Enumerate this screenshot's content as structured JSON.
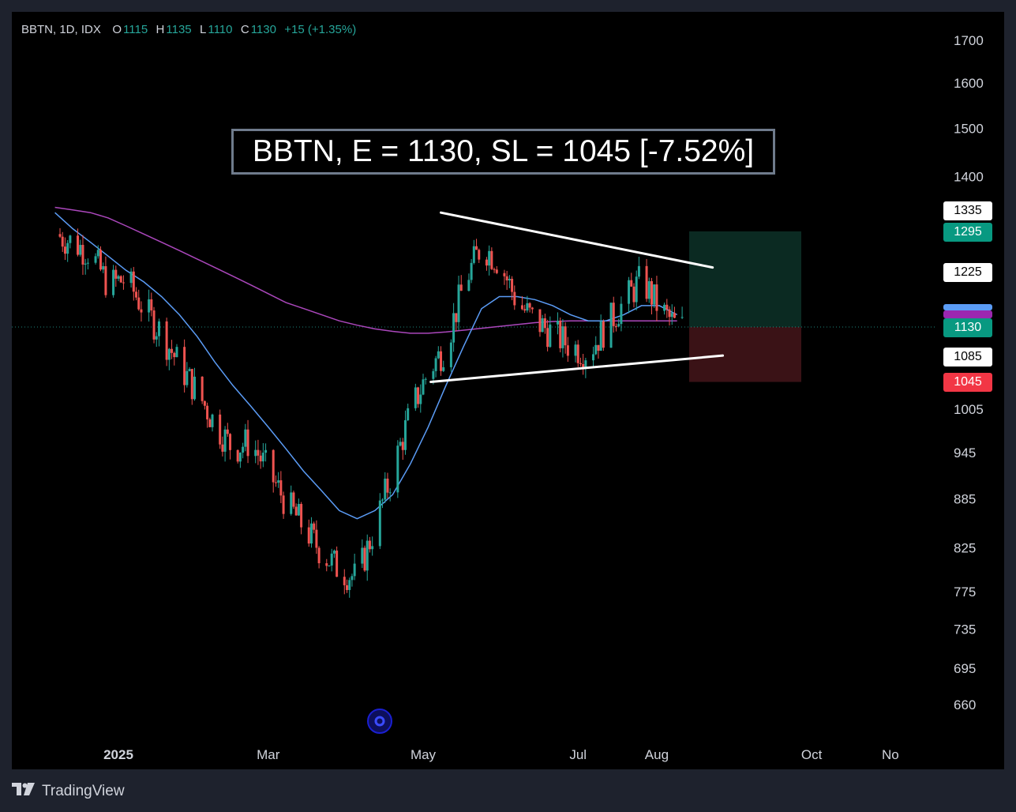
{
  "legend": {
    "symbol": "BBTN, 1D, IDX",
    "open_label": "O",
    "open": "1115",
    "high_label": "H",
    "high": "1135",
    "low_label": "L",
    "low": "1110",
    "close_label": "C",
    "close": "1130",
    "change": "+15 (+1.35%)"
  },
  "annotation": "BBTN, E = 1130, SL = 1045 [-7.52%]",
  "brand": "TradingView",
  "price_tags": {
    "t1335": "1335",
    "t1295": "1295",
    "t1225": "1225",
    "t1130": "1130",
    "t1085": "1085",
    "t1045": "1045"
  },
  "colors": {
    "up": "#26a69a",
    "down": "#ef5350",
    "ma_fast": "#5b9cf6",
    "ma_slow": "#ab47bc",
    "profit_zone": "#0b2a22",
    "loss_zone": "#3a1216"
  },
  "chart_data": {
    "type": "candlestick",
    "symbol": "BBTN",
    "interval": "1D",
    "exchange": "IDX",
    "scale": "log",
    "y_tick_labels": [
      "1700",
      "1600",
      "1500",
      "1400",
      "1005",
      "945",
      "885",
      "825",
      "775",
      "735",
      "695",
      "660"
    ],
    "x_tick_labels": [
      {
        "label": "2025",
        "date": "2025-01-01"
      },
      {
        "label": "Mar",
        "date": "2025-03-01"
      },
      {
        "label": "May",
        "date": "2025-05-01"
      },
      {
        "label": "Jul",
        "date": "2025-07-01"
      },
      {
        "label": "Aug",
        "date": "2025-08-01"
      },
      {
        "label": "Oct",
        "date": "2025-10-01"
      },
      {
        "label": "No",
        "date": "2025-11-01"
      }
    ],
    "last_ohlc": {
      "open": 1115,
      "high": 1135,
      "low": 1110,
      "close": 1130,
      "change": 15,
      "change_pct": 1.35
    },
    "trade": {
      "entry": 1130,
      "stop_loss": 1045,
      "target": 1295,
      "risk_pct": -7.52
    },
    "horizontal_levels": [
      1335,
      1295,
      1225,
      1130,
      1085,
      1045
    ],
    "trendlines": [
      {
        "name": "upper",
        "from": {
          "date": "2025-05-08",
          "price": 1330
        },
        "to": {
          "date": "2025-08-23",
          "price": 1230
        }
      },
      {
        "name": "lower",
        "from": {
          "date": "2025-05-04",
          "price": 1045
        },
        "to": {
          "date": "2025-08-27",
          "price": 1085
        }
      }
    ],
    "close_series": {
      "dates": [
        "2024-12-07",
        "2024-12-14",
        "2024-12-21",
        "2024-12-28",
        "2025-01-04",
        "2025-01-11",
        "2025-01-18",
        "2025-01-25",
        "2025-02-01",
        "2025-02-08",
        "2025-02-15",
        "2025-02-22",
        "2025-03-01",
        "2025-03-08",
        "2025-03-15",
        "2025-03-22",
        "2025-03-29",
        "2025-04-05",
        "2025-04-12",
        "2025-04-19",
        "2025-04-26",
        "2025-05-03",
        "2025-05-10",
        "2025-05-17",
        "2025-05-24",
        "2025-05-31",
        "2025-06-07",
        "2025-06-14",
        "2025-06-21",
        "2025-06-28",
        "2025-07-05",
        "2025-07-12",
        "2025-07-19",
        "2025-07-26",
        "2025-08-02",
        "2025-08-09"
      ],
      "close": [
        1290,
        1275,
        1255,
        1200,
        1210,
        1160,
        1120,
        1070,
        1030,
        985,
        950,
        960,
        920,
        880,
        850,
        820,
        800,
        790,
        850,
        920,
        1000,
        1060,
        1100,
        1200,
        1270,
        1240,
        1170,
        1140,
        1120,
        1100,
        1090,
        1130,
        1170,
        1210,
        1160,
        1130
      ]
    },
    "ma_fast": [
      1330,
      1300,
      1275,
      1250,
      1225,
      1205,
      1180,
      1150,
      1115,
      1075,
      1040,
      1010,
      980,
      950,
      920,
      895,
      870,
      860,
      870,
      890,
      930,
      980,
      1040,
      1100,
      1160,
      1180,
      1180,
      1175,
      1165,
      1150,
      1140,
      1140,
      1150,
      1165,
      1165,
      1150
    ],
    "ma_slow": [
      1340,
      1335,
      1330,
      1320,
      1305,
      1290,
      1275,
      1260,
      1245,
      1230,
      1215,
      1200,
      1185,
      1170,
      1160,
      1150,
      1140,
      1133,
      1127,
      1123,
      1120,
      1120,
      1122,
      1125,
      1128,
      1131,
      1134,
      1137,
      1139,
      1140,
      1140,
      1140,
      1140,
      1140,
      1140,
      1140
    ]
  }
}
